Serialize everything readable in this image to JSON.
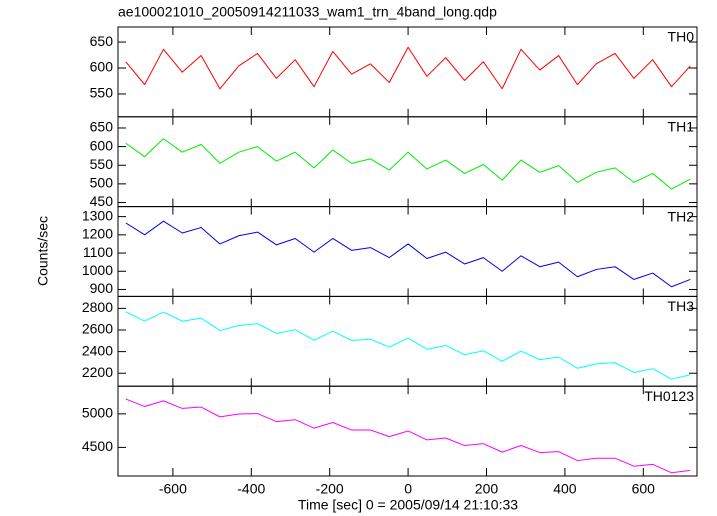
{
  "title": "ae100021010_20050914211033_wam1_trn_4band_long.qdp",
  "x_label": "Time [sec] 0 = 2005/09/14 21:10:33",
  "y_label": "Counts/sec",
  "x": [
    -720,
    -672,
    -624,
    -576,
    -528,
    -480,
    -432,
    -384,
    -336,
    -288,
    -240,
    -192,
    -144,
    -96,
    -48,
    0,
    48,
    96,
    144,
    192,
    240,
    288,
    336,
    384,
    432,
    480,
    528,
    576,
    624,
    672,
    720
  ],
  "xlim": [
    -740,
    737
  ],
  "xticks": [
    -600,
    -400,
    -200,
    0,
    200,
    400,
    600
  ],
  "chart_data": [
    {
      "type": "line",
      "label": "TH0",
      "color": "#ff0000",
      "ylim": [
        506,
        679
      ],
      "yticks": [
        550,
        600,
        650
      ],
      "values": [
        612,
        568,
        636,
        592,
        624,
        560,
        604,
        628,
        580,
        616,
        564,
        632,
        588,
        608,
        572,
        640,
        584,
        620,
        576,
        612,
        560,
        636,
        596,
        624,
        568,
        608,
        628,
        580,
        616,
        564,
        604
      ]
    },
    {
      "type": "line",
      "label": "TH1",
      "color": "#00ee00",
      "ylim": [
        439,
        680
      ],
      "yticks": [
        450,
        500,
        550,
        600,
        650
      ],
      "values": [
        609,
        573,
        621,
        585,
        606,
        555,
        585,
        600,
        561,
        585,
        543,
        591,
        555,
        567,
        537,
        585,
        540,
        564,
        528,
        552,
        510,
        564,
        531,
        549,
        504,
        531,
        543,
        504,
        528,
        486,
        513
      ]
    },
    {
      "type": "line",
      "label": "TH2",
      "color": "#0000ee",
      "ylim": [
        862,
        1355
      ],
      "yticks": [
        900,
        1000,
        1100,
        1200,
        1300
      ],
      "values": [
        1265,
        1200,
        1275,
        1210,
        1240,
        1150,
        1195,
        1215,
        1145,
        1180,
        1105,
        1180,
        1115,
        1130,
        1075,
        1150,
        1070,
        1105,
        1040,
        1075,
        1000,
        1085,
        1025,
        1050,
        970,
        1010,
        1025,
        955,
        990,
        915,
        955
      ]
    },
    {
      "type": "line",
      "label": "TH3",
      "color": "#00ffff",
      "ylim": [
        2080,
        2911
      ],
      "yticks": [
        2200,
        2400,
        2600,
        2800
      ],
      "values": [
        2768,
        2683,
        2766,
        2681,
        2710,
        2595,
        2642,
        2659,
        2568,
        2603,
        2506,
        2589,
        2504,
        2515,
        2442,
        2525,
        2422,
        2457,
        2372,
        2407,
        2310,
        2405,
        2326,
        2349,
        2246,
        2287,
        2298,
        2207,
        2242,
        2145,
        2186
      ]
    },
    {
      "type": "line",
      "label": "TH0123",
      "color": "#ff00ff",
      "ylim": [
        4074,
        5412
      ],
      "yticks": [
        4500,
        5000
      ],
      "values": [
        5221,
        5109,
        5193,
        5081,
        5102,
        4955,
        4997,
        5004,
        4885,
        4913,
        4787,
        4871,
        4759,
        4759,
        4661,
        4745,
        4612,
        4640,
        4528,
        4556,
        4430,
        4528,
        4423,
        4437,
        4304,
        4339,
        4339,
        4220,
        4248,
        4122,
        4157
      ]
    }
  ]
}
